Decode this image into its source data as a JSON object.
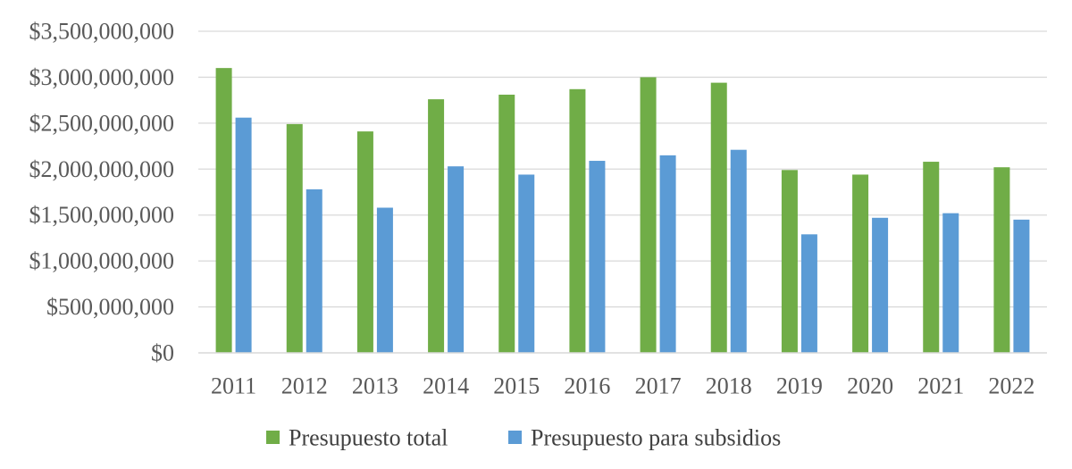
{
  "chart_data": {
    "type": "bar",
    "categories": [
      "2011",
      "2012",
      "2013",
      "2014",
      "2015",
      "2016",
      "2017",
      "2018",
      "2019",
      "2020",
      "2021",
      "2022"
    ],
    "series": [
      {
        "name": "Presupuesto total",
        "color": "#70ad47",
        "values": [
          3100000000,
          2490000000,
          2410000000,
          2760000000,
          2810000000,
          2870000000,
          3000000000,
          2940000000,
          1990000000,
          1940000000,
          2080000000,
          2020000000
        ]
      },
      {
        "name": "Presupuesto para subsidios",
        "color": "#5b9bd5",
        "values": [
          2560000000,
          1780000000,
          1580000000,
          2030000000,
          1940000000,
          2090000000,
          2150000000,
          2210000000,
          1290000000,
          1470000000,
          1520000000,
          1450000000
        ]
      }
    ],
    "y_ticks": [
      "$0",
      "$500,000,000",
      "$1,000,000,000",
      "$1,500,000,000",
      "$2,000,000,000",
      "$2,500,000,000",
      "$3,000,000,000",
      "$3,500,000,000"
    ],
    "ylim": [
      0,
      3500000000
    ],
    "grid": true,
    "gridline_color": "#d9d9d9",
    "legend_position": "bottom",
    "title": "",
    "xlabel": "",
    "ylabel": ""
  }
}
